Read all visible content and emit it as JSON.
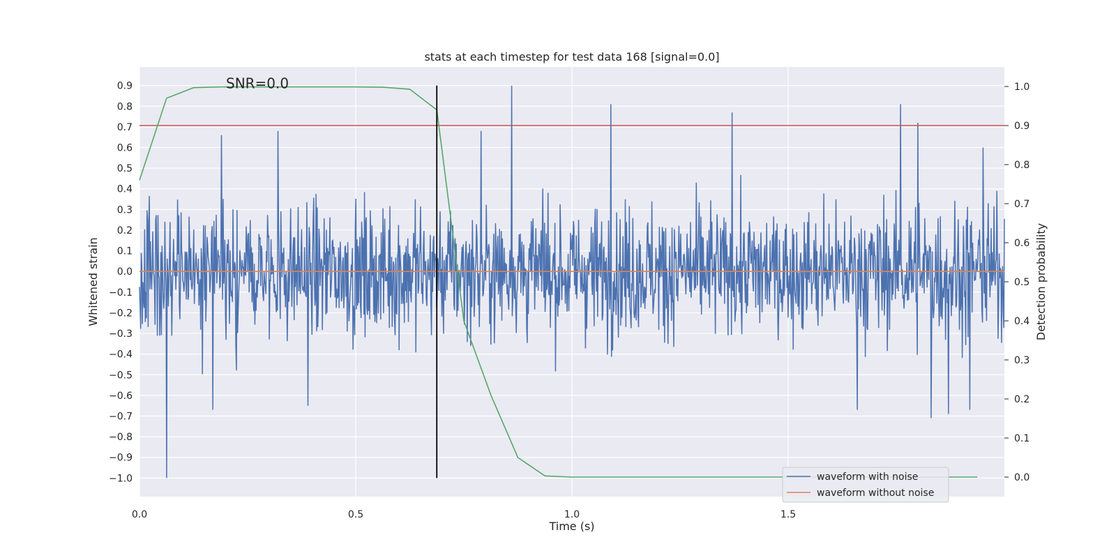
{
  "chart_data": {
    "type": "line",
    "title": "stats at each timestep for test data 168 [signal=0.0]",
    "xlabel": "Time (s)",
    "ylabel": "Whitened strain",
    "y2label": "Detection probability",
    "xlim": [
      0.0,
      2.0
    ],
    "ylim": [
      -1.09,
      0.99
    ],
    "y2lim": [
      -0.05,
      1.05
    ],
    "xticks": [
      0.0,
      0.5,
      1.0,
      1.5
    ],
    "xtick_labels": [
      "0.0",
      "0.5",
      "1.0",
      "1.5"
    ],
    "yticks": [
      -1.0,
      -0.9,
      -0.8,
      -0.7,
      -0.6,
      -0.5,
      -0.4,
      -0.3,
      -0.2,
      -0.1,
      0.0,
      0.1,
      0.2,
      0.3,
      0.4,
      0.5,
      0.6,
      0.7,
      0.8,
      0.9
    ],
    "ytick_labels": [
      "−1.0",
      "−0.9",
      "−0.8",
      "−0.7",
      "−0.6",
      "−0.5",
      "−0.4",
      "−0.3",
      "−0.2",
      "−0.1",
      "0.0",
      "0.1",
      "0.2",
      "0.3",
      "0.4",
      "0.5",
      "0.6",
      "0.7",
      "0.8",
      "0.9"
    ],
    "y2ticks": [
      0.0,
      0.1,
      0.2,
      0.3,
      0.4,
      0.5,
      0.6,
      0.7,
      0.8,
      0.9,
      1.0
    ],
    "y2tick_labels": [
      "0.0",
      "0.1",
      "0.2",
      "0.3",
      "0.4",
      "0.5",
      "0.6",
      "0.7",
      "0.8",
      "0.9",
      "1.0"
    ],
    "grid": true,
    "legend_position": "lower-right",
    "annotation": "SNR=0.0",
    "annotation_at": [
      0.2,
      0.9
    ],
    "series": [
      {
        "name": "waveform with noise",
        "axis": "left",
        "color": "#4c72b0",
        "x_start": 0.0,
        "x_end": 2.0,
        "amplitude": 0.25,
        "extremes": [
          {
            "x": 0.0625,
            "y": -1.0
          },
          {
            "x": 0.86,
            "y": 0.9
          },
          {
            "x": 1.09,
            "y": 0.81
          },
          {
            "x": 1.76,
            "y": 0.81
          },
          {
            "x": 1.8,
            "y": 0.72
          },
          {
            "x": 1.37,
            "y": 0.77
          },
          {
            "x": 0.19,
            "y": 0.66
          },
          {
            "x": 0.32,
            "y": 0.68
          },
          {
            "x": 0.79,
            "y": 0.68
          },
          {
            "x": 1.83,
            "y": -0.71
          },
          {
            "x": 1.66,
            "y": -0.67
          },
          {
            "x": 0.39,
            "y": -0.65
          },
          {
            "x": 0.17,
            "y": -0.67
          },
          {
            "x": 1.95,
            "y": 0.6
          },
          {
            "x": 1.87,
            "y": -0.69
          },
          {
            "x": 1.92,
            "y": -0.67
          }
        ]
      },
      {
        "name": "waveform without noise",
        "axis": "left",
        "color": "#dd8452",
        "x": [
          0.0,
          2.0
        ],
        "y": [
          0.0,
          0.0
        ]
      },
      {
        "axis": "right",
        "color": "#55a868",
        "x": [
          0.0,
          0.0625,
          0.125,
          0.1875,
          0.25,
          0.3125,
          0.375,
          0.4375,
          0.5,
          0.5625,
          0.625,
          0.6875,
          0.75,
          0.8125,
          0.875,
          0.9375,
          1.0,
          1.0625,
          1.125,
          1.1875,
          1.25,
          1.3125,
          1.375,
          1.4375,
          1.5,
          1.5625,
          1.625,
          1.6875,
          1.75,
          1.8125,
          1.875,
          1.9375
        ],
        "y": [
          0.76,
          0.97,
          0.997,
          0.999,
          0.999,
          0.999,
          0.999,
          0.999,
          0.999,
          0.998,
          0.993,
          0.94,
          0.4,
          0.21,
          0.05,
          0.003,
          0.0,
          0.0,
          0.0,
          0.0,
          0.0,
          0.0,
          0.0,
          0.0,
          0.0,
          0.0,
          0.0,
          0.0,
          0.0,
          0.0,
          0.0,
          0.0
        ]
      }
    ],
    "threshold": {
      "axis": "right",
      "y": 0.9,
      "color": "#c44e52"
    },
    "vline": {
      "x": 0.6875,
      "color": "#000000",
      "ymin": -1.0,
      "ymax": 0.9
    }
  }
}
